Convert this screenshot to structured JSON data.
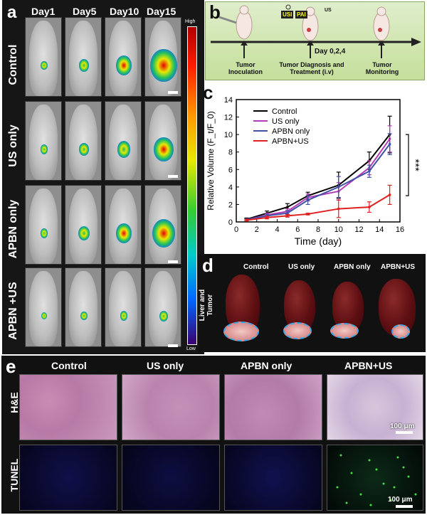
{
  "panel_a": {
    "label": "a",
    "days": [
      "Day1",
      "Day5",
      "Day10",
      "Day15"
    ],
    "groups": [
      "Control",
      "US only",
      "APBN only",
      "APBN +US"
    ],
    "colorbar": {
      "high": "High",
      "low": "Low"
    }
  },
  "panel_b": {
    "label": "b",
    "badges": [
      "USI",
      "PAI"
    ],
    "us_tag": "US",
    "day_label": "Day 0,2,4",
    "steps": [
      "Tumor Inoculation",
      "Tumor Diagnosis and Treatment (i.v)",
      "Tumor Monitoring"
    ]
  },
  "panel_c": {
    "label": "c"
  },
  "chart_data": {
    "type": "line",
    "xlabel": "Time (day)",
    "ylabel": "Relative Volume (F_t/F_0)",
    "xlim": [
      0,
      16
    ],
    "ylim": [
      0,
      14
    ],
    "xticks": [
      0,
      2,
      4,
      6,
      8,
      10,
      12,
      14,
      16
    ],
    "yticks": [
      0,
      2,
      4,
      6,
      8,
      10,
      12,
      14
    ],
    "x": [
      1,
      3,
      5,
      7,
      10,
      13,
      15
    ],
    "series": [
      {
        "name": "Control",
        "color": "#000000",
        "values": [
          0.3,
          1.0,
          1.7,
          3.0,
          4.2,
          7.0,
          10.0
        ],
        "errors": [
          0.15,
          0.25,
          0.4,
          0.4,
          1.5,
          1.0,
          2.1
        ]
      },
      {
        "name": "US only",
        "color": "#b43fb4",
        "values": [
          0.25,
          0.8,
          1.2,
          2.8,
          3.5,
          6.2,
          9.5
        ],
        "errors": [
          0.1,
          0.2,
          0.3,
          0.4,
          1.0,
          0.8,
          1.5
        ]
      },
      {
        "name": "APBN only",
        "color": "#3f51a8",
        "values": [
          0.25,
          0.7,
          1.0,
          2.5,
          4.0,
          5.8,
          8.9
        ],
        "errors": [
          0.1,
          0.2,
          0.3,
          0.5,
          1.2,
          0.7,
          1.2
        ]
      },
      {
        "name": "APBN+US",
        "color": "#e02020",
        "values": [
          0.2,
          0.5,
          0.7,
          0.9,
          1.5,
          1.7,
          3.1
        ],
        "errors": [
          0.1,
          0.15,
          0.15,
          0.1,
          1.0,
          0.6,
          1.1
        ]
      }
    ],
    "significance": "***"
  },
  "panel_d": {
    "label": "d",
    "side_label": "Liver and Tumor",
    "groups": [
      "Control",
      "US only",
      "APBN only",
      "APBN+US"
    ]
  },
  "panel_e": {
    "label": "e",
    "groups": [
      "Control",
      "US only",
      "APBN only",
      "APBN+US"
    ],
    "rows": [
      "H&E",
      "TUNEL"
    ],
    "scale_he": "100 μm",
    "scale_tunel": "100 μm"
  }
}
